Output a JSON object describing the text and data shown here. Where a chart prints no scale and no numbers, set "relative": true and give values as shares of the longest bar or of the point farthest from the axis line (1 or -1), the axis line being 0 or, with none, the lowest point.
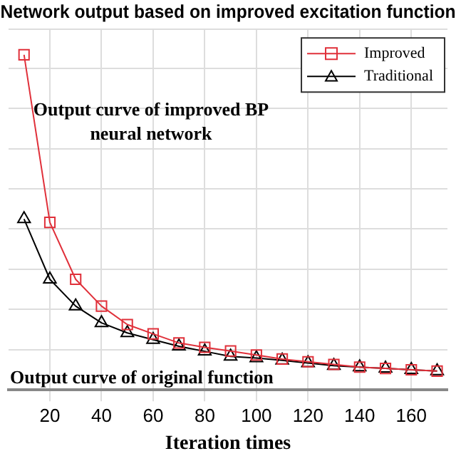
{
  "chart_data": {
    "type": "line",
    "title": "Network output based on improved excitation function",
    "xlabel": "Iteration times",
    "relative": true,
    "xlim": [
      4,
      174
    ],
    "xticks": [
      20,
      40,
      60,
      80,
      100,
      120,
      140,
      160
    ],
    "grid": true,
    "legend": "top right",
    "line_style": "solid",
    "annotations": [
      "Output curve of improved BP neural network",
      "Output curve of original function"
    ],
    "x": [
      10,
      20,
      30,
      40,
      50,
      60,
      70,
      80,
      90,
      100,
      110,
      120,
      130,
      140,
      150,
      160,
      170
    ],
    "series": [
      {
        "name": "Improved",
        "color": "#e0303a",
        "marker": "square",
        "values": [
          1,
          0.5,
          0.33,
          0.25,
          0.195,
          0.167,
          0.14,
          0.127,
          0.116,
          0.104,
          0.092,
          0.084,
          0.076,
          0.068,
          0.064,
          0.06,
          0.056
        ]
      },
      {
        "name": "Traditional",
        "color": "#000000",
        "marker": "triangle",
        "values": [
          0.51,
          0.33,
          0.25,
          0.2,
          0.17,
          0.15,
          0.13,
          0.115,
          0.1,
          0.095,
          0.088,
          0.08,
          0.072,
          0.068,
          0.064,
          0.06,
          0.056
        ]
      }
    ]
  }
}
